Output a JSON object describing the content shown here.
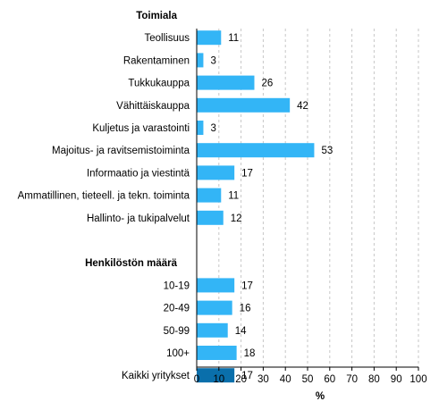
{
  "chart_data": {
    "type": "bar",
    "orientation": "horizontal",
    "xlabel": "%",
    "xlim": [
      0,
      100
    ],
    "xticks": [
      0,
      10,
      20,
      30,
      40,
      50,
      60,
      70,
      80,
      90,
      100
    ],
    "grid": true,
    "colors": {
      "bar": "#33b5f6",
      "highlight": "#0a6fab",
      "grid": "#c7c7c7",
      "axis": "#000000"
    },
    "rows": [
      {
        "kind": "group",
        "label": "Toimiala"
      },
      {
        "kind": "bar",
        "label": "Teollisuus",
        "value": 11
      },
      {
        "kind": "bar",
        "label": "Rakentaminen",
        "value": 3
      },
      {
        "kind": "bar",
        "label": "Tukkukauppa",
        "value": 26
      },
      {
        "kind": "bar",
        "label": "Vähittäiskauppa",
        "value": 42
      },
      {
        "kind": "bar",
        "label": "Kuljetus ja varastointi",
        "value": 3
      },
      {
        "kind": "bar",
        "label": "Majoitus- ja ravitsemistoiminta",
        "value": 53
      },
      {
        "kind": "bar",
        "label": "Informaatio ja viestintä",
        "value": 17
      },
      {
        "kind": "bar",
        "label": "Ammatillinen, tieteell. ja tekn. toiminta",
        "value": 11
      },
      {
        "kind": "bar",
        "label": "Hallinto- ja tukipalvelut",
        "value": 12
      },
      {
        "kind": "spacer"
      },
      {
        "kind": "group",
        "label": "Henkilöstön määrä"
      },
      {
        "kind": "bar",
        "label": "10-19",
        "value": 17
      },
      {
        "kind": "bar",
        "label": "20-49",
        "value": 16
      },
      {
        "kind": "bar",
        "label": "50-99",
        "value": 14
      },
      {
        "kind": "bar",
        "label": "100+",
        "value": 18
      },
      {
        "kind": "bar",
        "label": "Kaikki yritykset",
        "value": 17,
        "highlight": true
      }
    ]
  }
}
